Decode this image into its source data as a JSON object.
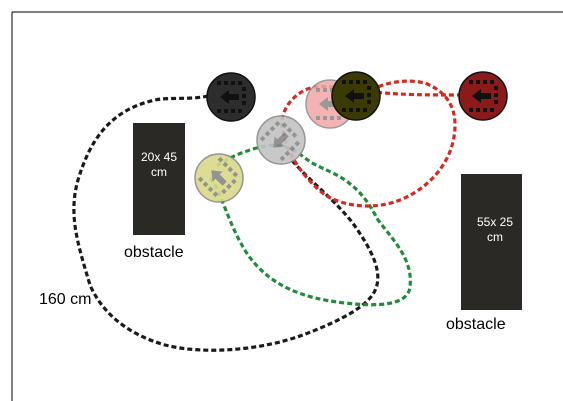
{
  "obstacles": [
    {
      "dim_line1": "20x 45",
      "dim_line2": "cm",
      "label": "obstacle"
    },
    {
      "dim_line1": "55x 25",
      "dim_line2": "cm",
      "label": "obstacle"
    }
  ],
  "distance_label": "160 cm",
  "colors": {
    "path_black": "#1a1a1a",
    "path_red": "#d42a1f",
    "path_green": "#1f8c3a",
    "obstacle_fill": "#2b2926",
    "robot_black": "#2d2d2d",
    "robot_gray": "#c3c3c3",
    "robot_yellow": "#d9d98a",
    "robot_pink": "#f2a6a6",
    "robot_olive": "#3b3a05",
    "robot_darkred": "#8b1a1a"
  },
  "robots": [
    {
      "name": "robot-black",
      "color_key": "robot_black",
      "heading": "left"
    },
    {
      "name": "robot-gray",
      "color_key": "robot_gray",
      "heading": "up-left"
    },
    {
      "name": "robot-yellow",
      "color_key": "robot_yellow",
      "heading": "down-left"
    },
    {
      "name": "robot-pink",
      "color_key": "robot_pink",
      "heading": "left"
    },
    {
      "name": "robot-olive",
      "color_key": "robot_olive",
      "heading": "left"
    },
    {
      "name": "robot-darkred",
      "color_key": "robot_darkred",
      "heading": "left"
    }
  ]
}
